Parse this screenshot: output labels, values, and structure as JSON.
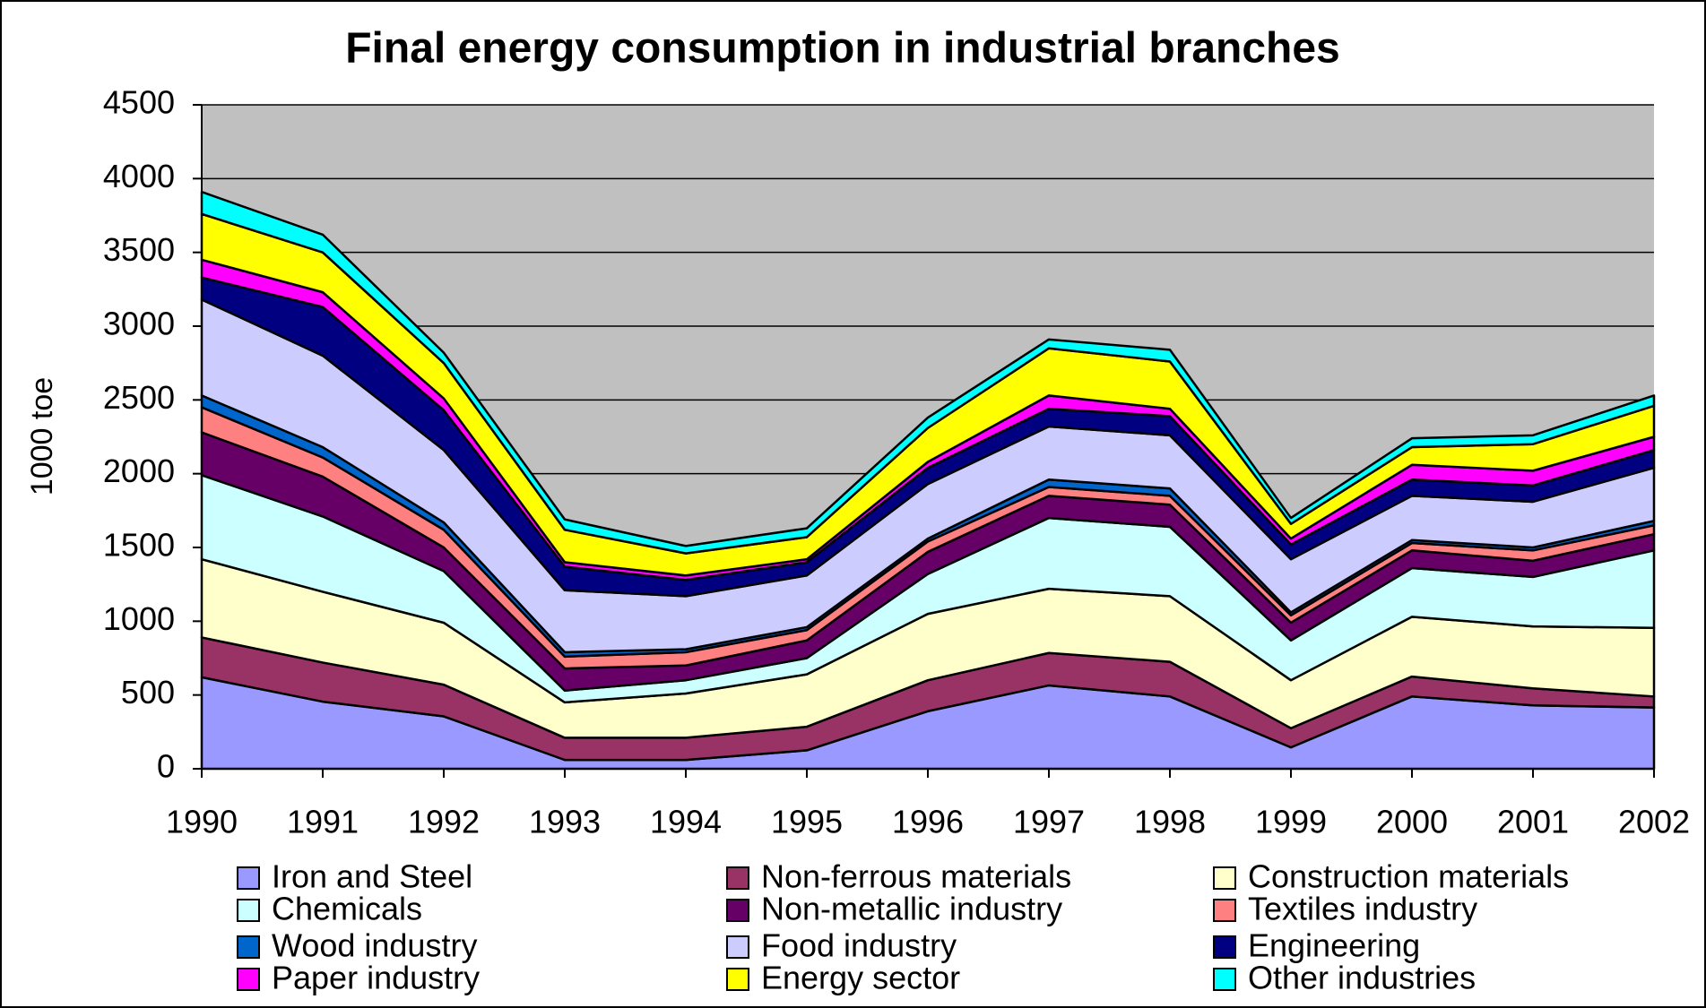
{
  "chart_data": {
    "type": "stacked_area",
    "title": "Final energy consumption in industrial branches",
    "y_label": "1000 toe",
    "categories": [
      "1990",
      "1991",
      "1992",
      "1993",
      "1994",
      "1995",
      "1996",
      "1997",
      "1998",
      "1999",
      "2000",
      "2001",
      "2002"
    ],
    "ylim": [
      0,
      4500
    ],
    "yticks": [
      0,
      500,
      1000,
      1500,
      2000,
      2500,
      3000,
      3500,
      4000,
      4500
    ],
    "grid": true,
    "legend": "bottom",
    "series": [
      {
        "name": "Iron and Steel",
        "color": "#9999FF",
        "values": [
          620,
          455,
          355,
          60,
          60,
          125,
          390,
          565,
          490,
          145,
          490,
          430,
          415
        ]
      },
      {
        "name": "Non-ferrous materials",
        "color": "#993366",
        "values": [
          270,
          265,
          215,
          150,
          150,
          160,
          210,
          220,
          235,
          130,
          135,
          115,
          75
        ]
      },
      {
        "name": "Construction materials",
        "color": "#FFFFCC",
        "values": [
          530,
          480,
          420,
          240,
          300,
          355,
          450,
          435,
          445,
          325,
          405,
          420,
          465
        ]
      },
      {
        "name": "Chemicals",
        "color": "#CCFFFF",
        "values": [
          570,
          510,
          350,
          80,
          90,
          110,
          270,
          480,
          470,
          270,
          330,
          335,
          525
        ]
      },
      {
        "name": "Non-metallic industry",
        "color": "#660066",
        "values": [
          290,
          270,
          160,
          150,
          100,
          120,
          150,
          150,
          150,
          120,
          120,
          110,
          110
        ]
      },
      {
        "name": "Textiles industry",
        "color": "#FF8080",
        "values": [
          170,
          130,
          120,
          80,
          90,
          70,
          70,
          60,
          60,
          50,
          50,
          70,
          60
        ]
      },
      {
        "name": "Wood industry",
        "color": "#0066CC",
        "values": [
          80,
          70,
          50,
          30,
          20,
          20,
          20,
          50,
          50,
          20,
          20,
          20,
          30
        ]
      },
      {
        "name": "Food industry",
        "color": "#CCCCFF",
        "values": [
          650,
          620,
          490,
          420,
          360,
          350,
          370,
          360,
          360,
          360,
          300,
          310,
          360
        ]
      },
      {
        "name": "Engineering",
        "color": "#000080",
        "values": [
          150,
          330,
          270,
          160,
          110,
          90,
          110,
          120,
          130,
          100,
          110,
          110,
          120
        ]
      },
      {
        "name": "Paper industry",
        "color": "#FF00FF",
        "values": [
          120,
          100,
          80,
          30,
          30,
          20,
          40,
          90,
          50,
          40,
          100,
          100,
          90
        ]
      },
      {
        "name": "Energy sector",
        "color": "#FFFF00",
        "values": [
          310,
          270,
          240,
          220,
          150,
          150,
          230,
          320,
          320,
          100,
          120,
          180,
          210
        ]
      },
      {
        "name": "Other industries",
        "color": "#00FFFF",
        "values": [
          150,
          120,
          70,
          70,
          50,
          60,
          70,
          60,
          80,
          40,
          60,
          60,
          70
        ]
      }
    ]
  }
}
